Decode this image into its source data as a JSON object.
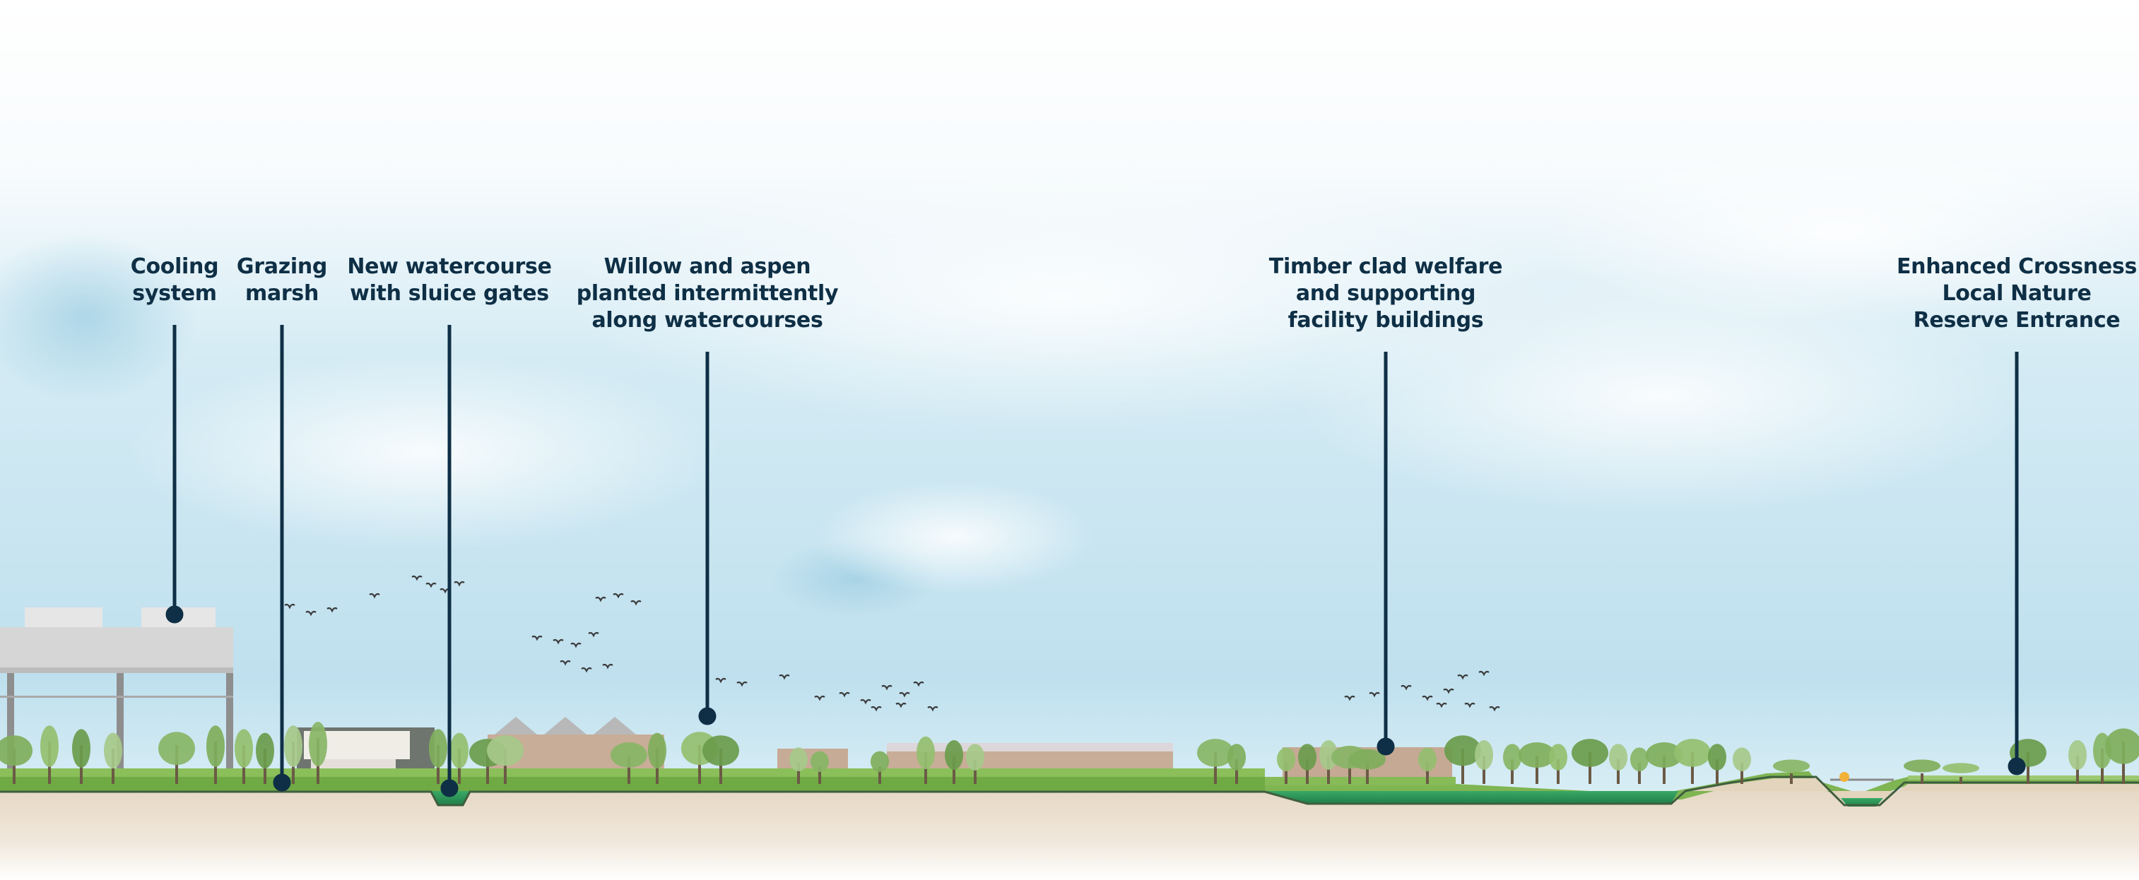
{
  "diagram": {
    "callouts": [
      {
        "id": "cooling-system",
        "lines": [
          "Cooling",
          "system"
        ]
      },
      {
        "id": "grazing-marsh",
        "lines": [
          "Grazing",
          "marsh"
        ]
      },
      {
        "id": "new-watercourse",
        "lines": [
          "New watercourse",
          "with sluice gates"
        ]
      },
      {
        "id": "willow-aspen",
        "lines": [
          "Willow and aspen",
          "planted intermittently",
          "along watercourses"
        ]
      },
      {
        "id": "timber-clad",
        "lines": [
          "Timber clad welfare",
          "and supporting",
          "facility buildings"
        ]
      },
      {
        "id": "crossness-entrance",
        "lines": [
          "Enhanced Crossness",
          "Local Nature",
          "Reserve Entrance"
        ]
      }
    ],
    "colors": {
      "label_text": "#0e2f45",
      "leader_line": "#0e2f45",
      "sky_blue": "#b9dcec",
      "ground": "#e8dccb",
      "grass": "#7fb552",
      "tree": "#7fae5b",
      "water": "#2f9c57",
      "building_roof": "#d2d2d2",
      "building_clad": "#c7ab97"
    }
  }
}
